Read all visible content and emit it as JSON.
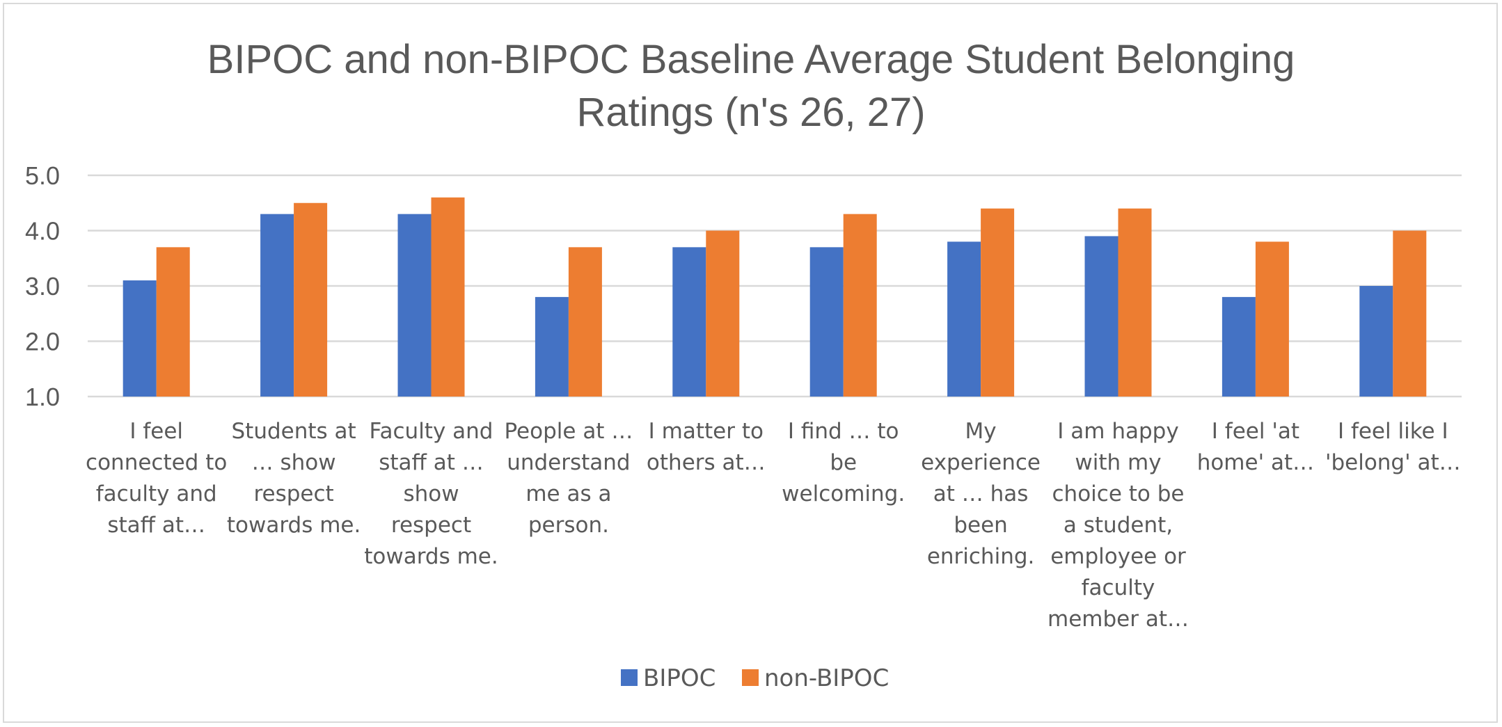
{
  "chart_data": {
    "type": "bar",
    "title": "BIPOC and non-BIPOC Baseline Average Student Belonging Ratings (n's 26, 27)",
    "title_lines": [
      "BIPOC and non-BIPOC Baseline Average Student Belonging",
      "Ratings (n's 26, 27)"
    ],
    "xlabel": "",
    "ylabel": "",
    "ylim": [
      1.0,
      5.0
    ],
    "yticks": [
      "1.0",
      "2.0",
      "3.0",
      "4.0",
      "5.0"
    ],
    "grid": true,
    "legend_position": "bottom",
    "categories": [
      "I feel connected to faculty and staff at…",
      "Students at … show respect towards me.",
      "Faculty and staff at … show respect towards me.",
      "People at … understand me as a person.",
      "I matter to others at…",
      "I find … to be welcoming.",
      "My experience at … has been enriching.",
      "I am happy with my choice to be a student, employee or faculty member at…",
      "I feel 'at home' at…",
      "I feel like I 'belong' at…"
    ],
    "category_label_lines": [
      [
        "I feel",
        "connected to",
        "faculty and",
        "staff at…"
      ],
      [
        "Students at",
        "… show",
        "respect",
        "towards me."
      ],
      [
        "Faculty and",
        "staff at …",
        "show",
        "respect",
        "towards me."
      ],
      [
        "People at …",
        "understand",
        "me as a",
        "person."
      ],
      [
        "I matter to",
        "others at…"
      ],
      [
        "I find … to",
        "be",
        "welcoming."
      ],
      [
        "My",
        "experience",
        "at … has",
        "been",
        "enriching."
      ],
      [
        "I am happy",
        "with my",
        "choice to be",
        "a student,",
        "employee or",
        "faculty",
        "member at…"
      ],
      [
        "I feel 'at",
        "home' at…"
      ],
      [
        "I feel like I",
        "'belong' at…"
      ]
    ],
    "series": [
      {
        "name": "BIPOC",
        "color": "#4472C4",
        "values": [
          3.1,
          4.3,
          4.3,
          2.8,
          3.7,
          3.7,
          3.8,
          3.9,
          2.8,
          3.0
        ]
      },
      {
        "name": "non-BIPOC",
        "color": "#ED7D31",
        "values": [
          3.7,
          4.5,
          4.6,
          3.7,
          4.0,
          4.3,
          4.4,
          4.4,
          3.8,
          4.0
        ]
      }
    ]
  }
}
